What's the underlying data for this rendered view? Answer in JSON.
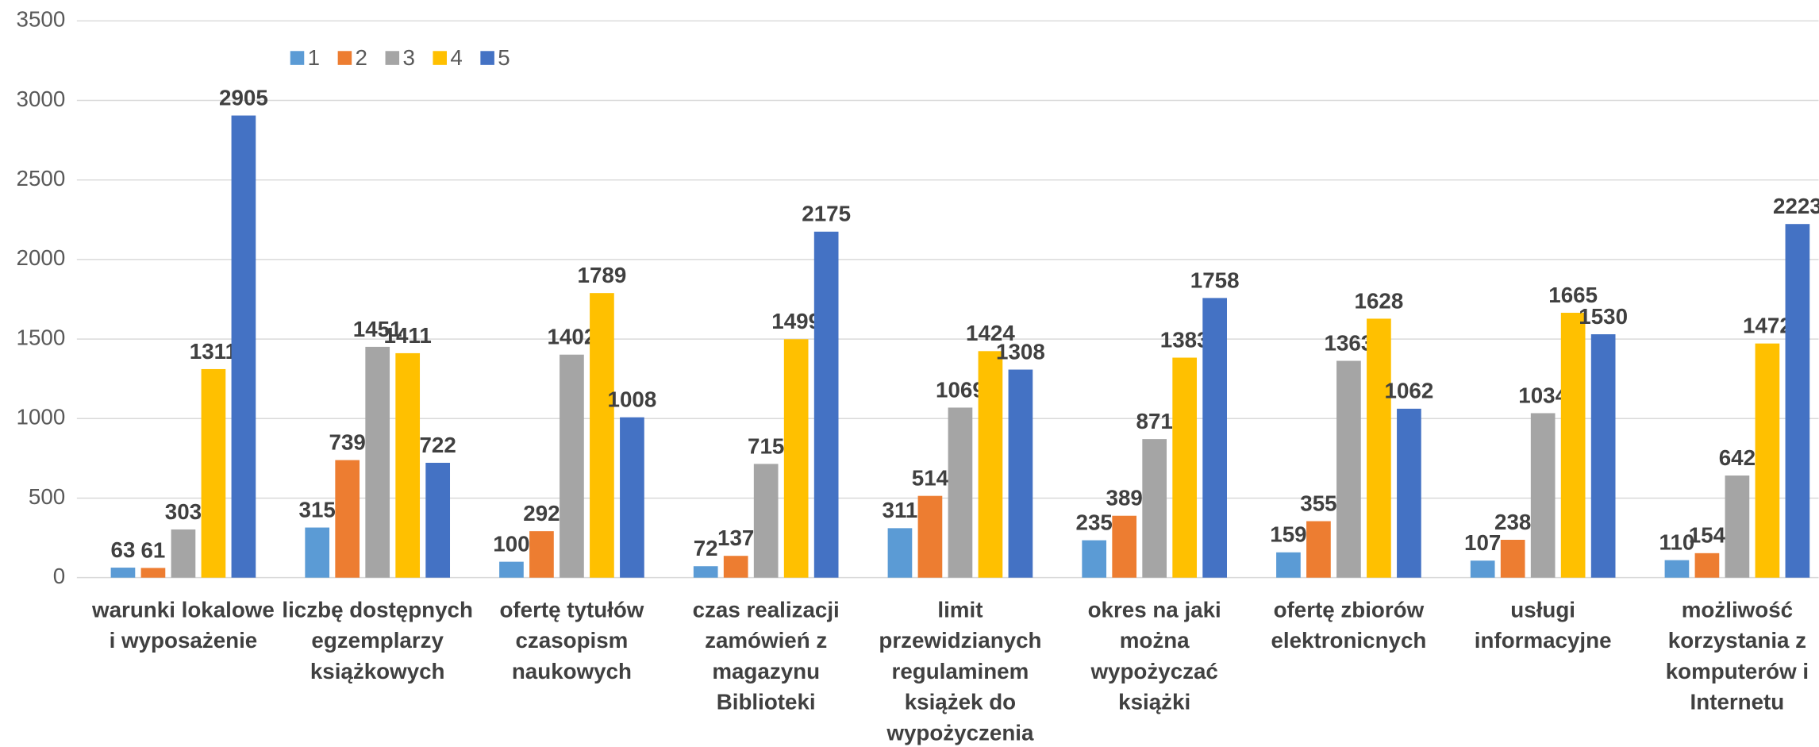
{
  "chart_data": {
    "type": "bar",
    "categories": [
      [
        "warunki lokalowe",
        "i wyposażenie"
      ],
      [
        "liczbę dostępnych",
        "egzemplarzy",
        "książkowych"
      ],
      [
        "ofertę tytułów",
        "czasopism",
        "naukowych"
      ],
      [
        "czas realizacji",
        "zamówień z",
        "magazynu",
        "Biblioteki"
      ],
      [
        "limit",
        "przewidzianych",
        "regulaminem",
        "książek do",
        "wypożyczenia"
      ],
      [
        "okres na jaki",
        "można",
        "wypożyczać",
        "książki"
      ],
      [
        "ofertę zbiorów",
        "elektronicnych"
      ],
      [
        "usługi",
        "informacyjne"
      ],
      [
        "możliwość",
        "korzystania z",
        "komputerów i",
        "Internetu"
      ]
    ],
    "series": [
      {
        "name": "1",
        "color": "#5b9bd5",
        "values": [
          63,
          315,
          100,
          72,
          311,
          235,
          159,
          107,
          110
        ]
      },
      {
        "name": "2",
        "color": "#ed7d31",
        "values": [
          61,
          739,
          292,
          137,
          514,
          389,
          355,
          238,
          154
        ]
      },
      {
        "name": "3",
        "color": "#a5a5a5",
        "values": [
          303,
          1451,
          1402,
          715,
          1069,
          871,
          1363,
          1034,
          642
        ]
      },
      {
        "name": "4",
        "color": "#ffc000",
        "values": [
          1311,
          1411,
          1789,
          1499,
          1424,
          1383,
          1628,
          1665,
          1472
        ]
      },
      {
        "name": "5",
        "color": "#4472c4",
        "values": [
          2905,
          722,
          1008,
          2175,
          1308,
          1758,
          1062,
          1530,
          2223
        ]
      }
    ],
    "ylim": [
      0,
      3500
    ],
    "yticks": [
      0,
      500,
      1000,
      1500,
      2000,
      2500,
      3000,
      3500
    ],
    "grid": true,
    "legend": "top-left"
  }
}
